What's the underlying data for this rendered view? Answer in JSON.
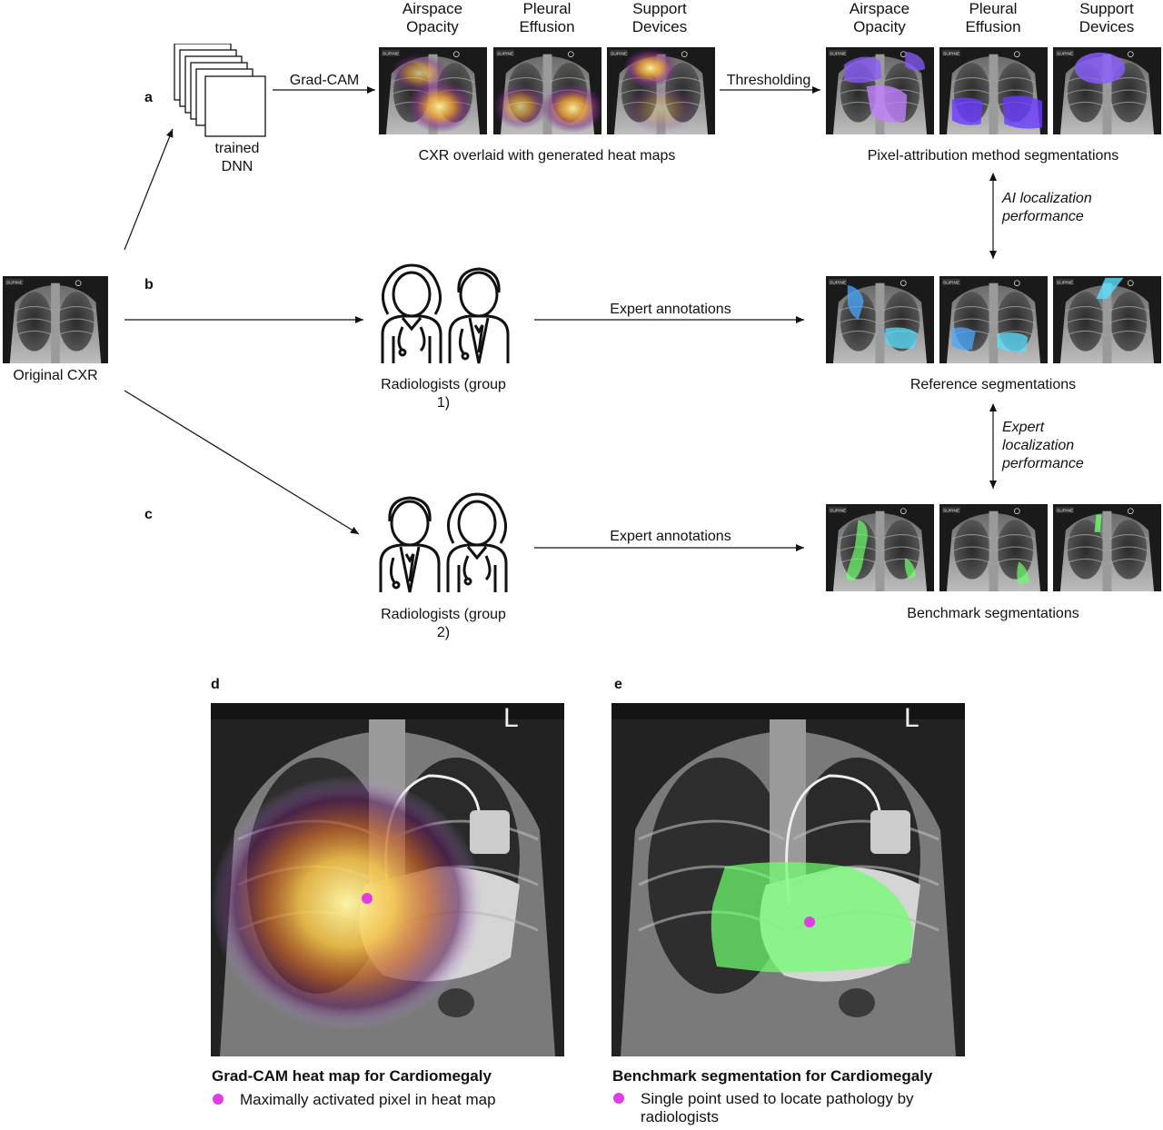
{
  "panels": {
    "a": "a",
    "b": "b",
    "c": "c",
    "d": "d",
    "e": "e"
  },
  "pathologies": [
    "Airspace Opacity",
    "Pleural Effusion",
    "Support Devices"
  ],
  "pathologies_right": [
    "Airspace Opacity",
    "Pleural Effusion",
    "Support Devices"
  ],
  "labels": {
    "trained_dnn": "trained DNN",
    "gradcam": "Grad-CAM",
    "thresholding": "Thresholding",
    "heatmaps_caption": "CXR overlaid with generated heat maps",
    "pixel_attr_caption": "Pixel-attribution method segmentations",
    "ai_perf": "AI localization performance",
    "original_cxr": "Original CXR",
    "expert_annotations_1": "Expert annotations",
    "expert_annotations_2": "Expert annotations",
    "radiologists_1": "Radiologists (group 1)",
    "radiologists_2": "Radiologists (group 2)",
    "reference_caption": "Reference segmentations",
    "expert_perf": "Expert localization performance",
    "benchmark_caption": "Benchmark segmentations",
    "supine": "SUPINE"
  },
  "panel_d": {
    "title": "Grad-CAM heat map for Cardiomegaly",
    "legend": "Maximally activated pixel in heat map",
    "marker_text": "L"
  },
  "panel_e": {
    "title": "Benchmark segmentation for Cardiomegaly",
    "legend": "Single point used to locate pathology by radiologists",
    "marker_text": "L"
  },
  "colors": {
    "dot": "#e23ce6",
    "heat_hot": "#fff27a",
    "heat_mid": "#e08a2a",
    "heat_cool": "#6a2a7a",
    "threshold": "#7b4cff",
    "reference": "#5ad0ff",
    "benchmark": "#6dff6d"
  },
  "icons": [
    "stacked-layers-icon",
    "doctor-female-icon",
    "doctor-male-icon"
  ]
}
